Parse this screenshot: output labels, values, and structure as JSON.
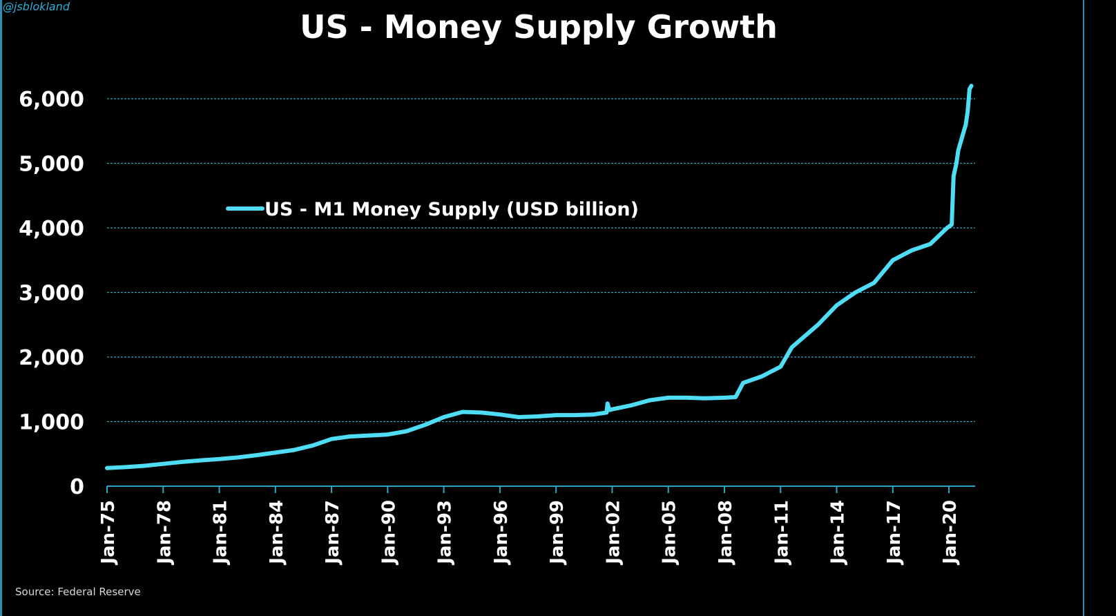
{
  "handle": "@jsblokland",
  "source": "Source: Federal Reserve",
  "colors": {
    "background": "#000000",
    "series": "#4fdcf5",
    "grid": "#2aa9c4",
    "text": "#ffffff"
  },
  "chart_data": {
    "type": "line",
    "title": "US - Money Supply Growth",
    "xlabel": "",
    "ylabel": "",
    "ylim": [
      0,
      6000
    ],
    "xlim": [
      1975.0,
      2021.4
    ],
    "grid": true,
    "legend_position": "upper-left",
    "y_ticks": [
      {
        "value": 0,
        "label": "0"
      },
      {
        "value": 1000,
        "label": "1,000"
      },
      {
        "value": 2000,
        "label": "2,000"
      },
      {
        "value": 3000,
        "label": "3,000"
      },
      {
        "value": 4000,
        "label": "4,000"
      },
      {
        "value": 5000,
        "label": "5,000"
      },
      {
        "value": 6000,
        "label": "6,000"
      }
    ],
    "x_ticks": [
      {
        "value": 1975,
        "label": "Jan-75"
      },
      {
        "value": 1978,
        "label": "Jan-78"
      },
      {
        "value": 1981,
        "label": "Jan-81"
      },
      {
        "value": 1984,
        "label": "Jan-84"
      },
      {
        "value": 1987,
        "label": "Jan-87"
      },
      {
        "value": 1990,
        "label": "Jan-90"
      },
      {
        "value": 1993,
        "label": "Jan-93"
      },
      {
        "value": 1996,
        "label": "Jan-96"
      },
      {
        "value": 1999,
        "label": "Jan-99"
      },
      {
        "value": 2002,
        "label": "Jan-02"
      },
      {
        "value": 2005,
        "label": "Jan-05"
      },
      {
        "value": 2008,
        "label": "Jan-08"
      },
      {
        "value": 2011,
        "label": "Jan-11"
      },
      {
        "value": 2014,
        "label": "Jan-14"
      },
      {
        "value": 2017,
        "label": "Jan-17"
      },
      {
        "value": 2020,
        "label": "Jan-20"
      }
    ],
    "series": [
      {
        "name": "US - M1 Money Supply (USD billion)",
        "x": [
          1975.0,
          1976.0,
          1977.0,
          1978.0,
          1979.0,
          1980.0,
          1981.0,
          1982.0,
          1983.0,
          1984.0,
          1985.0,
          1986.0,
          1987.0,
          1988.0,
          1989.0,
          1990.0,
          1991.0,
          1992.0,
          1993.0,
          1994.0,
          1995.0,
          1996.0,
          1997.0,
          1998.0,
          1999.0,
          2000.0,
          2001.0,
          2001.7,
          2001.75,
          2001.85,
          2002.0,
          2003.0,
          2004.0,
          2005.0,
          2006.0,
          2007.0,
          2008.0,
          2008.6,
          2009.0,
          2010.0,
          2011.0,
          2011.6,
          2012.0,
          2013.0,
          2014.0,
          2015.0,
          2016.0,
          2017.0,
          2018.0,
          2019.0,
          2019.9,
          2020.15,
          2020.25,
          2020.4,
          2020.5,
          2020.7,
          2020.9,
          2021.0,
          2021.1,
          2021.2
        ],
        "values": [
          280,
          295,
          315,
          345,
          375,
          400,
          420,
          445,
          480,
          520,
          560,
          630,
          730,
          770,
          785,
          800,
          850,
          950,
          1070,
          1150,
          1140,
          1110,
          1070,
          1080,
          1100,
          1100,
          1110,
          1140,
          1280,
          1180,
          1190,
          1250,
          1330,
          1370,
          1370,
          1360,
          1370,
          1380,
          1600,
          1700,
          1850,
          2150,
          2250,
          2500,
          2800,
          3000,
          3150,
          3500,
          3650,
          3750,
          4000,
          4050,
          4800,
          5000,
          5200,
          5400,
          5600,
          5800,
          6150,
          6200
        ]
      }
    ]
  }
}
